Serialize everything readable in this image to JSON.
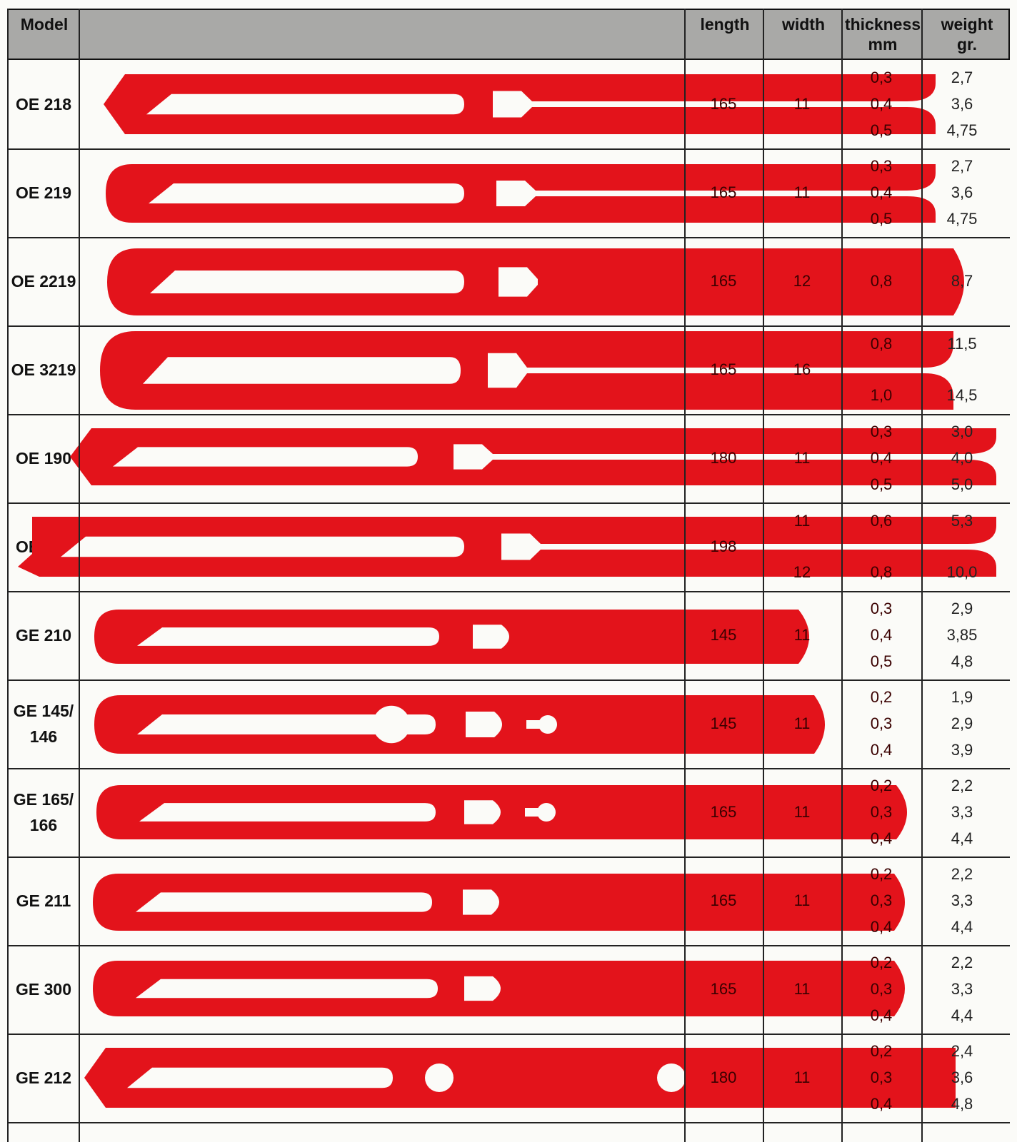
{
  "colors": {
    "blade": "#e3131b",
    "header_bg": "#a9a9a7",
    "grid": "#222222"
  },
  "header": {
    "model": "Model",
    "length": "length",
    "width": "width",
    "thickness": "thickness",
    "thickness_unit": "mm",
    "weight": "weight",
    "weight_unit": "gr."
  },
  "rows": [
    {
      "model": "OE 218",
      "blade_icon": "blade-oe218-icon",
      "length": "165",
      "width": "11",
      "thickness": [
        "0,3",
        "0,4",
        "0,5"
      ],
      "weight": [
        "2,7",
        "3,6",
        "4,75"
      ]
    },
    {
      "model": "OE 219",
      "blade_icon": "blade-oe219-icon",
      "length": "165",
      "width": "11",
      "thickness": [
        "0,3",
        "0,4",
        "0,5"
      ],
      "weight": [
        "2,7",
        "3,6",
        "4,75"
      ]
    },
    {
      "model": "OE 2219",
      "blade_icon": "blade-oe2219-icon",
      "length": "165",
      "width": "12",
      "thickness": [
        "0,8"
      ],
      "weight": [
        "8,7"
      ]
    },
    {
      "model": "OE 3219",
      "blade_icon": "blade-oe3219-icon",
      "length": "165",
      "width": "16",
      "thickness": [
        "0,8",
        "1,0"
      ],
      "weight": [
        "11,5",
        "14,5"
      ]
    },
    {
      "model": "OE 190",
      "blade_icon": "blade-oe190-icon",
      "length": "180",
      "width": "11",
      "thickness": [
        "0,3",
        "0,4",
        "0,5"
      ],
      "weight": [
        "3,0",
        "4,0",
        "5,0"
      ]
    },
    {
      "model": "OE 500",
      "blade_icon": "blade-oe500-icon",
      "length": "198",
      "width": [
        "11",
        "12"
      ],
      "thickness": [
        "0,6",
        "0,8"
      ],
      "weight": [
        "5,3",
        "10,0"
      ]
    },
    {
      "model": "GE 210",
      "blade_icon": "blade-ge210-icon",
      "length": "145",
      "width": "11",
      "thickness": [
        "0,3",
        "0,4",
        "0,5"
      ],
      "weight": [
        "2,9",
        "3,85",
        "4,8"
      ]
    },
    {
      "model": "GE 145/\n146",
      "blade_icon": "blade-ge145-icon",
      "length": "145",
      "width": "11",
      "thickness": [
        "0,2",
        "0,3",
        "0,4"
      ],
      "weight": [
        "1,9",
        "2,9",
        "3,9"
      ]
    },
    {
      "model": "GE 165/\n166",
      "blade_icon": "blade-ge165-icon",
      "length": "165",
      "width": "11",
      "thickness": [
        "0,2",
        "0,3",
        "0,4"
      ],
      "weight": [
        "2,2",
        "3,3",
        "4,4"
      ]
    },
    {
      "model": "GE 211",
      "blade_icon": "blade-ge211-icon",
      "length": "165",
      "width": "11",
      "thickness": [
        "0,2",
        "0,3",
        "0,4"
      ],
      "weight": [
        "2,2",
        "3,3",
        "4,4"
      ]
    },
    {
      "model": "GE 300",
      "blade_icon": "blade-ge300-icon",
      "length": "165",
      "width": "11",
      "thickness": [
        "0,2",
        "0,3",
        "0,4"
      ],
      "weight": [
        "2,2",
        "3,3",
        "4,4"
      ]
    },
    {
      "model": "GE 212",
      "blade_icon": "blade-ge212-icon",
      "length": "180",
      "width": "11",
      "thickness": [
        "0,2",
        "0,3",
        "0,4"
      ],
      "weight": [
        "2,4",
        "3,6",
        "4,8"
      ]
    }
  ]
}
